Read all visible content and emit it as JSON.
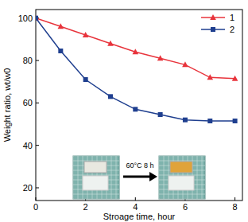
{
  "chart_data": {
    "type": "line",
    "x_label": "Stroage time, hour",
    "y_label": "Weight ratio, wt/w0",
    "x": [
      0,
      1,
      2,
      3,
      4,
      5,
      6,
      7,
      8
    ],
    "series": [
      {
        "name": "1",
        "color": "#e8343c",
        "marker": "triangle",
        "values": [
          100,
          96,
          92,
          88,
          84,
          81,
          78,
          72,
          71.5
        ]
      },
      {
        "name": "2",
        "color": "#1f3f8f",
        "marker": "square",
        "values": [
          100,
          84.5,
          71,
          63,
          57,
          54.5,
          52,
          51.5,
          51.5
        ]
      }
    ],
    "xlim": [
      0,
      8.3
    ],
    "ylim": [
      14,
      104
    ],
    "xticks": [
      0,
      2,
      4,
      6,
      8
    ],
    "yticks": [
      20,
      40,
      60,
      80,
      100
    ],
    "legend": "upper right",
    "annotations": [
      "60°C 8 h"
    ]
  }
}
